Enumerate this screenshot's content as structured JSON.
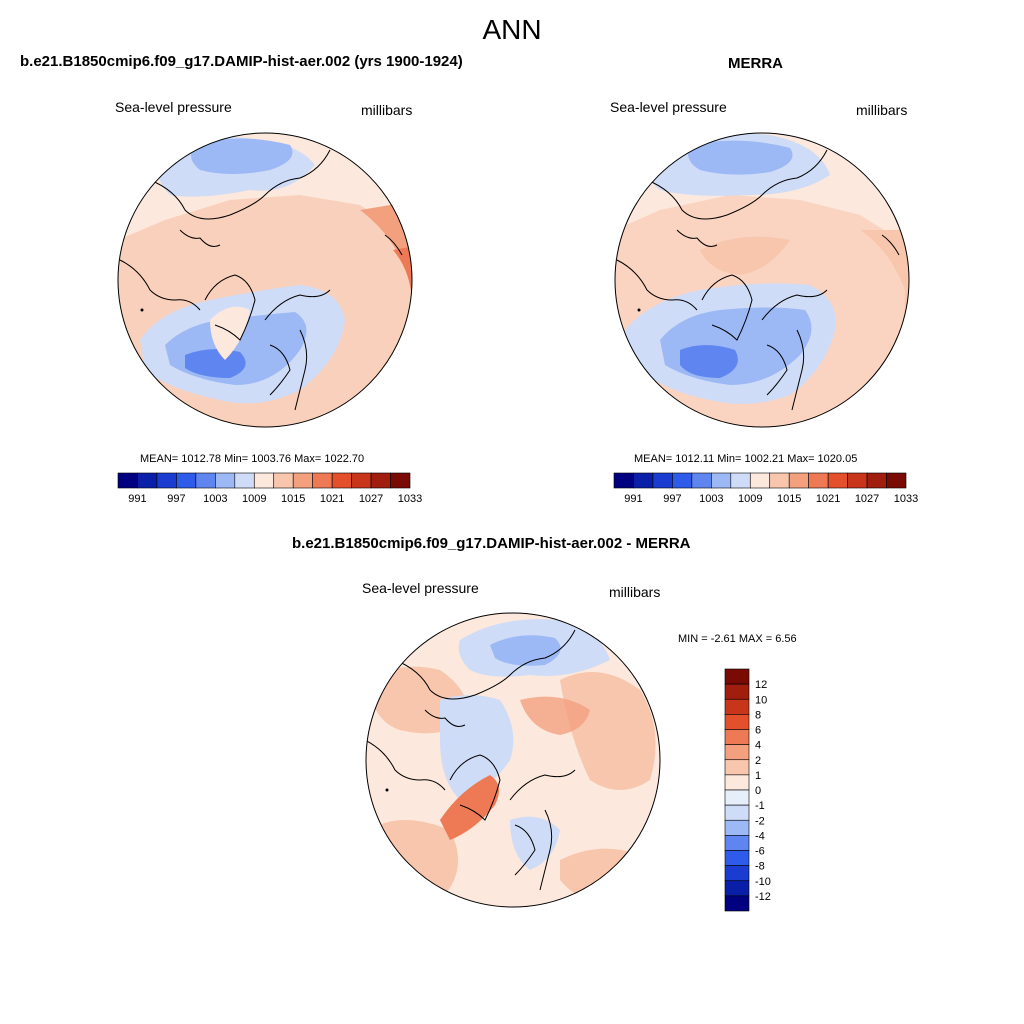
{
  "page": {
    "title": "ANN"
  },
  "panels": [
    {
      "title": "b.e21.B1850cmip6.f09_g17.DAMIP-hist-aer.002 (yrs 1900-1924)",
      "left_label": "Sea-level pressure",
      "right_label": "millibars",
      "stats": "MEAN= 1012.78  Min= 1003.76  Max= 1022.70"
    },
    {
      "title": "MERRA",
      "left_label": "Sea-level pressure",
      "right_label": "millibars",
      "stats": "MEAN= 1012.11  Min= 1002.21  Max= 1020.05"
    },
    {
      "title": "b.e21.B1850cmip6.f09_g17.DAMIP-hist-aer.002 - MERRA",
      "left_label": "Sea-level pressure",
      "right_label": "millibars",
      "stats": "MIN =  -2.61 MAX =   6.56"
    }
  ],
  "colorbar_abs": {
    "colors": [
      "#000080",
      "#0a1fa8",
      "#1a3cd0",
      "#2e5bea",
      "#5f86f0",
      "#9cb8f5",
      "#cfdcf7",
      "#fce8dc",
      "#f8c6ad",
      "#f3a07f",
      "#ee7a55",
      "#e4502c",
      "#c8351a",
      "#a11d0e",
      "#7a0a04"
    ],
    "labels": [
      "991",
      "997",
      "1003",
      "1009",
      "1015",
      "1021",
      "1027",
      "1033"
    ]
  },
  "colorbar_diff": {
    "colors": [
      "#000080",
      "#0a1fa8",
      "#1a3cd0",
      "#2e5bea",
      "#5f86f0",
      "#9cb8f5",
      "#cfdcf7",
      "#e6eefa",
      "#fce8dc",
      "#f8c6ad",
      "#f3a07f",
      "#ee7a55",
      "#e4502c",
      "#c8351a",
      "#a11d0e",
      "#7a0a04"
    ],
    "labels": [
      "12",
      "10",
      "8",
      "6",
      "4",
      "2",
      "1",
      "0",
      "-1",
      "-2",
      "-4",
      "-6",
      "-8",
      "-10",
      "-12"
    ]
  }
}
